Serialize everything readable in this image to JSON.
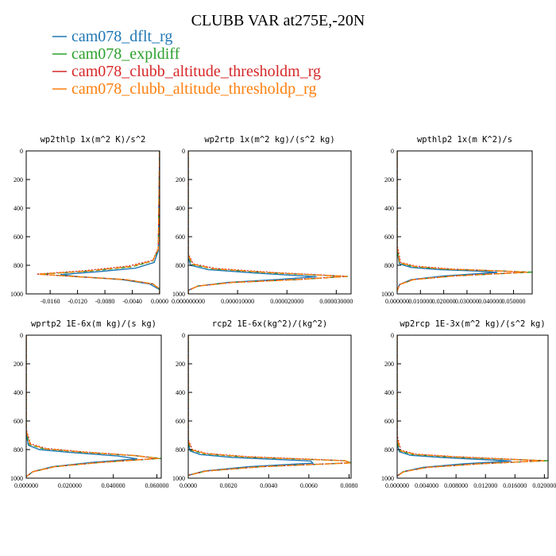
{
  "figure": {
    "title": "CLUBB VAR at275E,-20N"
  },
  "legend": [
    {
      "name": "cam078_dflt_rg",
      "color": "#1f77b4"
    },
    {
      "name": "cam078_expldiff",
      "color": "#2ca02c"
    },
    {
      "name": "cam078_clubb_altitude_thresholdm_rg",
      "color": "#d62728"
    },
    {
      "name": "cam078_clubb_altitude_thresholdp_rg",
      "color": "#ff7f0e"
    }
  ],
  "chart_data": [
    {
      "type": "line",
      "title": "wp2thlp  1x(m^2 K)/s^2",
      "xlim": [
        -0.0195,
        0.0
      ],
      "xticks": [
        -0.016,
        -0.012,
        -0.008,
        -0.004,
        0.0
      ],
      "xtick_labels": [
        "-0.0160",
        "-0.0120",
        "-0.0080",
        "-0.0040",
        "0.0000"
      ],
      "ylim": [
        1000,
        0
      ],
      "yticks": [
        0,
        200,
        400,
        600,
        800,
        1000
      ],
      "ytick_labels": [
        "0",
        "200",
        "400",
        "600",
        "800",
        "1000"
      ],
      "series": [
        {
          "name": "cam078_dflt_rg",
          "x": [
            0,
            -0.0002,
            -0.0008,
            -0.0035,
            -0.009,
            -0.0145,
            -0.0118,
            -0.0055,
            -0.0015,
            0,
            0
          ],
          "y": [
            0,
            700,
            780,
            820,
            845,
            865,
            880,
            900,
            930,
            970,
            1000
          ]
        },
        {
          "name": "cam078_expldiff",
          "x": [
            0,
            -0.0002,
            -0.001,
            -0.004,
            -0.01,
            -0.0175,
            -0.0125,
            -0.005,
            -0.001,
            0,
            0
          ],
          "y": [
            0,
            690,
            770,
            810,
            840,
            862,
            878,
            900,
            930,
            965,
            1000
          ]
        },
        {
          "name": "cam078_clubb_altitude_thresholdm_rg",
          "x": [
            0,
            -0.0002,
            -0.001,
            -0.0045,
            -0.011,
            -0.018,
            -0.0125,
            -0.005,
            -0.001,
            0,
            0
          ],
          "y": [
            0,
            680,
            765,
            805,
            838,
            862,
            878,
            900,
            930,
            965,
            1000
          ]
        },
        {
          "name": "cam078_clubb_altitude_thresholdp_rg",
          "x": [
            0,
            -0.0002,
            -0.001,
            -0.0042,
            -0.0105,
            -0.0178,
            -0.0123,
            -0.005,
            -0.001,
            0,
            0
          ],
          "y": [
            0,
            685,
            768,
            808,
            840,
            862,
            879,
            900,
            930,
            966,
            1000
          ]
        }
      ]
    },
    {
      "type": "line",
      "title": "wp2rtp  1x(m^2 kg)/(s^2 kg)",
      "xlim": [
        0.0,
        3.3e-05
      ],
      "xticks": [
        0.0,
        1e-05,
        2e-05,
        3e-05
      ],
      "xtick_labels": [
        "0.000000000",
        "0.000010000",
        "0.000020000",
        "0.000030000"
      ],
      "ylim": [
        1000,
        0
      ],
      "yticks": [
        0,
        200,
        400,
        600,
        800,
        1000
      ],
      "ytick_labels": [
        "0",
        "200",
        "400",
        "600",
        "800",
        "1000"
      ],
      "series": [
        {
          "name": "cam078_dflt_rg",
          "x": [
            0,
            0,
            5e-07,
            4e-06,
            1.4e-05,
            2.6e-05,
            1.8e-05,
            8e-06,
            2e-06,
            0,
            0
          ],
          "y": [
            0,
            750,
            800,
            830,
            855,
            880,
            900,
            920,
            945,
            975,
            1000
          ]
        },
        {
          "name": "cam078_expldiff",
          "x": [
            0,
            0,
            8e-07,
            5e-06,
            1.6e-05,
            3.25e-05,
            2.2e-05,
            9e-06,
            2e-06,
            0,
            0
          ],
          "y": [
            0,
            740,
            795,
            825,
            852,
            878,
            900,
            920,
            945,
            975,
            1000
          ]
        },
        {
          "name": "cam078_clubb_altitude_thresholdm_rg",
          "x": [
            0,
            0,
            1e-06,
            5.5e-06,
            1.7e-05,
            3.2e-05,
            2.2e-05,
            9e-06,
            2e-06,
            0,
            0
          ],
          "y": [
            0,
            720,
            790,
            822,
            850,
            877,
            900,
            920,
            945,
            975,
            1000
          ]
        },
        {
          "name": "cam078_clubb_altitude_thresholdp_rg",
          "x": [
            0,
            0,
            9e-07,
            5e-06,
            1.65e-05,
            3.22e-05,
            2.2e-05,
            9e-06,
            2e-06,
            0,
            0
          ],
          "y": [
            0,
            730,
            792,
            824,
            851,
            878,
            900,
            920,
            945,
            975,
            1000
          ]
        }
      ]
    },
    {
      "type": "line",
      "title": "wpthlp2  1x(m K^2)/s",
      "xlim": [
        0.0,
        0.058
      ],
      "xticks": [
        0.0,
        0.01,
        0.02,
        0.03,
        0.04,
        0.05
      ],
      "xtick_labels": [
        "0.000000",
        "0.010000",
        "0.020000",
        "0.030000",
        "0.040000",
        "0.050000"
      ],
      "ylim": [
        1000,
        0
      ],
      "yticks": [
        0,
        200,
        400,
        600,
        800,
        1000
      ],
      "ytick_labels": [
        "0",
        "200",
        "400",
        "600",
        "800",
        "1000"
      ],
      "series": [
        {
          "name": "cam078_dflt_rg",
          "x": [
            0,
            0,
            0.001,
            0.006,
            0.018,
            0.034,
            0.043,
            0.02,
            0.006,
            0.001,
            0
          ],
          "y": [
            0,
            700,
            790,
            815,
            830,
            840,
            850,
            875,
            900,
            935,
            980
          ]
        },
        {
          "name": "cam078_expldiff",
          "x": [
            0,
            0,
            0.001,
            0.007,
            0.022,
            0.042,
            0.058,
            0.024,
            0.007,
            0.001,
            0
          ],
          "y": [
            0,
            690,
            785,
            810,
            828,
            838,
            848,
            875,
            900,
            935,
            980
          ]
        },
        {
          "name": "cam078_clubb_altitude_thresholdm_rg",
          "x": [
            0,
            0,
            0.0015,
            0.008,
            0.023,
            0.042,
            0.055,
            0.024,
            0.007,
            0.001,
            0
          ],
          "y": [
            0,
            660,
            780,
            806,
            826,
            838,
            848,
            875,
            900,
            935,
            980
          ]
        },
        {
          "name": "cam078_clubb_altitude_thresholdp_rg",
          "x": [
            0,
            0,
            0.0012,
            0.0075,
            0.022,
            0.041,
            0.056,
            0.024,
            0.007,
            0.001,
            0
          ],
          "y": [
            0,
            675,
            783,
            808,
            827,
            838,
            848,
            875,
            900,
            935,
            980
          ]
        }
      ]
    },
    {
      "type": "line",
      "title": "wprtp2  1E-6x(m kg)/(s kg)",
      "xlim": [
        0.0,
        0.062
      ],
      "xticks": [
        0.0,
        0.02,
        0.04,
        0.06
      ],
      "xtick_labels": [
        "0.000000",
        "0.020000",
        "0.040000",
        "0.060000"
      ],
      "ylim": [
        1000,
        0
      ],
      "yticks": [
        0,
        200,
        400,
        600,
        800,
        1000
      ],
      "ytick_labels": [
        "0",
        "200",
        "400",
        "600",
        "800",
        "1000"
      ],
      "series": [
        {
          "name": "cam078_dflt_rg",
          "x": [
            0,
            0,
            0.001,
            0.006,
            0.02,
            0.042,
            0.051,
            0.03,
            0.012,
            0.003,
            0
          ],
          "y": [
            0,
            690,
            770,
            800,
            820,
            845,
            865,
            890,
            920,
            955,
            990
          ]
        },
        {
          "name": "cam078_expldiff",
          "x": [
            0,
            0,
            0.0015,
            0.008,
            0.025,
            0.05,
            0.062,
            0.034,
            0.013,
            0.003,
            0
          ],
          "y": [
            0,
            680,
            765,
            795,
            818,
            843,
            862,
            890,
            920,
            955,
            990
          ]
        },
        {
          "name": "cam078_clubb_altitude_thresholdm_rg",
          "x": [
            0,
            0,
            0.002,
            0.009,
            0.026,
            0.05,
            0.06,
            0.034,
            0.013,
            0.003,
            0
          ],
          "y": [
            0,
            660,
            760,
            792,
            816,
            842,
            862,
            890,
            920,
            955,
            990
          ]
        },
        {
          "name": "cam078_clubb_altitude_thresholdp_rg",
          "x": [
            0,
            0,
            0.0018,
            0.0085,
            0.0255,
            0.05,
            0.061,
            0.034,
            0.013,
            0.003,
            0
          ],
          "y": [
            0,
            670,
            762,
            794,
            817,
            842,
            862,
            890,
            920,
            955,
            990
          ]
        }
      ]
    },
    {
      "type": "line",
      "title": "rcp2  1E-6x(kg^2)/(kg^2)",
      "xlim": [
        0.0,
        0.0081
      ],
      "xticks": [
        0.0,
        0.002,
        0.004,
        0.006,
        0.008
      ],
      "xtick_labels": [
        "0.0000",
        "0.0020",
        "0.0040",
        "0.0060",
        "0.0080"
      ],
      "ylim": [
        1000,
        0
      ],
      "yticks": [
        0,
        200,
        400,
        600,
        800,
        1000
      ],
      "ytick_labels": [
        "0",
        "200",
        "400",
        "600",
        "800",
        "1000"
      ],
      "series": [
        {
          "name": "cam078_dflt_rg",
          "x": [
            0,
            0,
            0.0001,
            0.0006,
            0.0022,
            0.0045,
            0.0061,
            0.0062,
            0.003,
            0.0008,
            0
          ],
          "y": [
            0,
            760,
            810,
            835,
            855,
            870,
            880,
            895,
            920,
            950,
            980
          ]
        },
        {
          "name": "cam078_expldiff",
          "x": [
            0,
            0,
            0.00015,
            0.0008,
            0.0028,
            0.0058,
            0.0078,
            0.0081,
            0.0036,
            0.0009,
            0
          ],
          "y": [
            0,
            750,
            805,
            830,
            852,
            868,
            878,
            893,
            920,
            950,
            980
          ]
        },
        {
          "name": "cam078_clubb_altitude_thresholdm_rg",
          "x": [
            0,
            0,
            0.0002,
            0.0009,
            0.003,
            0.006,
            0.0078,
            0.008,
            0.0036,
            0.0009,
            0
          ],
          "y": [
            0,
            730,
            800,
            827,
            850,
            867,
            878,
            893,
            920,
            950,
            980
          ]
        },
        {
          "name": "cam078_clubb_altitude_thresholdp_rg",
          "x": [
            0,
            0,
            0.00018,
            0.00085,
            0.0029,
            0.0059,
            0.0078,
            0.0081,
            0.0036,
            0.0009,
            0
          ],
          "y": [
            0,
            740,
            802,
            828,
            851,
            868,
            878,
            893,
            920,
            950,
            980
          ]
        }
      ]
    },
    {
      "type": "line",
      "title": "wp2rcp  1E-3x(m^2 kg)/(s^2 kg)",
      "xlim": [
        0.0,
        0.0205
      ],
      "xticks": [
        0.0,
        0.004,
        0.008,
        0.012,
        0.016,
        0.02
      ],
      "xtick_labels": [
        "0.000000",
        "0.004000",
        "0.008000",
        "0.012000",
        "0.016000",
        "0.020000"
      ],
      "ylim": [
        1000,
        0
      ],
      "yticks": [
        0,
        200,
        400,
        600,
        800,
        1000
      ],
      "ytick_labels": [
        "0",
        "200",
        "400",
        "600",
        "800",
        "1000"
      ],
      "series": [
        {
          "name": "cam078_dflt_rg",
          "x": [
            0,
            0,
            0.0003,
            0.0018,
            0.006,
            0.011,
            0.0155,
            0.009,
            0.0035,
            0.0008,
            0
          ],
          "y": [
            0,
            760,
            815,
            840,
            855,
            868,
            880,
            900,
            925,
            955,
            985
          ]
        },
        {
          "name": "cam078_expldiff",
          "x": [
            0,
            0,
            0.0004,
            0.0022,
            0.0075,
            0.014,
            0.0205,
            0.011,
            0.004,
            0.0009,
            0
          ],
          "y": [
            0,
            750,
            810,
            835,
            852,
            866,
            878,
            900,
            925,
            955,
            985
          ]
        },
        {
          "name": "cam078_clubb_altitude_thresholdm_rg",
          "x": [
            0,
            0,
            0.0005,
            0.0025,
            0.008,
            0.0145,
            0.0198,
            0.011,
            0.004,
            0.0009,
            0
          ],
          "y": [
            0,
            700,
            805,
            832,
            850,
            865,
            878,
            900,
            925,
            955,
            985
          ]
        },
        {
          "name": "cam078_clubb_altitude_thresholdp_rg",
          "x": [
            0,
            0,
            0.00045,
            0.0024,
            0.0078,
            0.0142,
            0.02,
            0.011,
            0.004,
            0.0009,
            0
          ],
          "y": [
            0,
            720,
            807,
            833,
            851,
            866,
            878,
            900,
            925,
            955,
            985
          ]
        }
      ]
    }
  ]
}
